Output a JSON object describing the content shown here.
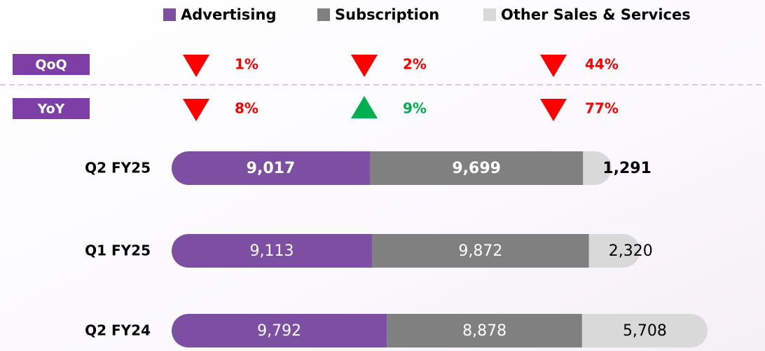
{
  "chart_data": {
    "type": "stacked-bar",
    "orientation": "horizontal",
    "categories": [
      "Q2 FY25",
      "Q1 FY25",
      "Q2 FY24"
    ],
    "emphasis": [
      true,
      false,
      false
    ],
    "series": [
      {
        "name": "Advertising",
        "color": "#7d4fa3",
        "values": [
          9017,
          9113,
          9792
        ],
        "value_labels": [
          "9,017",
          "9,113",
          "9,792"
        ]
      },
      {
        "name": "Subscription",
        "color": "#808080",
        "values": [
          9699,
          9872,
          8878
        ],
        "value_labels": [
          "9,699",
          "9,872",
          "8,878"
        ]
      },
      {
        "name": "Other Sales & Services",
        "color": "#d9d9d9",
        "values": [
          1291,
          2320,
          5708
        ],
        "value_labels": [
          "1,291",
          "2,320",
          "5,708"
        ]
      }
    ],
    "changes": [
      {
        "label": "QoQ",
        "values": [
          1,
          2,
          44
        ],
        "value_labels": [
          "1%",
          "2%",
          "44%"
        ],
        "directions": [
          "down",
          "down",
          "down"
        ]
      },
      {
        "label": "YoY",
        "values": [
          8,
          9,
          77
        ],
        "value_labels": [
          "8%",
          "9%",
          "77%"
        ],
        "directions": [
          "down",
          "up",
          "down"
        ]
      }
    ],
    "legend": "top"
  }
}
